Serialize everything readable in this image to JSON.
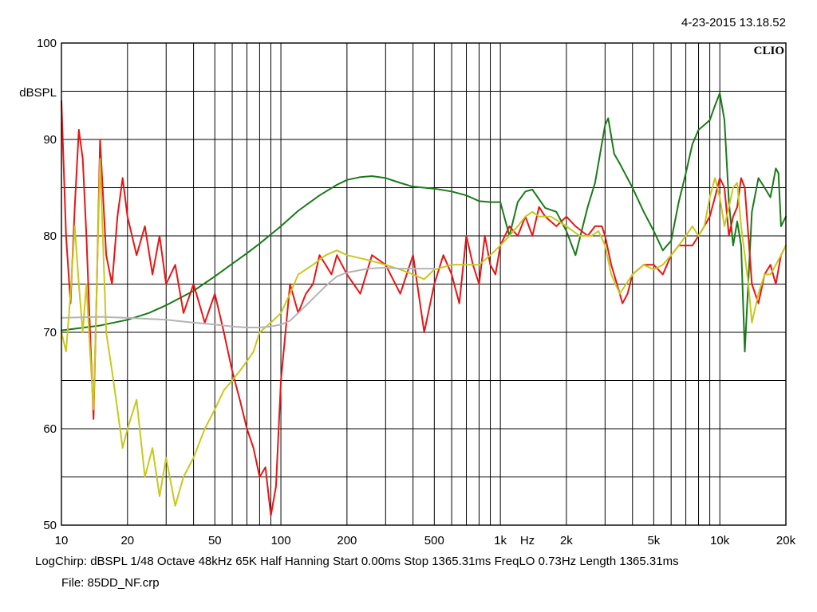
{
  "header": {
    "timestamp": "4-23-2015 13.18.52",
    "brand": "CLIO"
  },
  "footer": {
    "info_line": "LogChirp:  dBSPL   1/48 Octave   48kHz   65K   Half Hanning   Start 0.00ms   Stop 1365.31ms   FreqLO 0.73Hz   Length 1365.31ms",
    "file_line": "File: 85DD_NF.crp"
  },
  "chart_data": {
    "type": "line",
    "title": "",
    "xlabel": "Hz",
    "ylabel": "dBSPL",
    "xscale": "log",
    "xlim": [
      10,
      20000
    ],
    "ylim": [
      50,
      100
    ],
    "grid": true,
    "legend": "none",
    "y_ticks": [
      50,
      60,
      70,
      80,
      90,
      100
    ],
    "x_ticks": [
      {
        "value": 10,
        "label": "10"
      },
      {
        "value": 20,
        "label": "20"
      },
      {
        "value": 50,
        "label": "50"
      },
      {
        "value": 100,
        "label": "100"
      },
      {
        "value": 200,
        "label": "200"
      },
      {
        "value": 500,
        "label": "500"
      },
      {
        "value": 1000,
        "label": "1k"
      },
      {
        "value": 2000,
        "label": "2k"
      },
      {
        "value": 5000,
        "label": "5k"
      },
      {
        "value": 10000,
        "label": "10k"
      },
      {
        "value": 20000,
        "label": "20k"
      }
    ],
    "series": [
      {
        "color": "#1a7a1a",
        "x": [
          10,
          15,
          20,
          25,
          30,
          40,
          50,
          60,
          70,
          80,
          100,
          120,
          150,
          180,
          200,
          230,
          260,
          300,
          350,
          400,
          500,
          600,
          700,
          800,
          900,
          1000,
          1100,
          1200,
          1300,
          1400,
          1500,
          1600,
          1800,
          2000,
          2200,
          2500,
          2700,
          3000,
          3100,
          3300,
          3500,
          4000,
          4500,
          5000,
          5500,
          6000,
          6500,
          7000,
          7500,
          8000,
          8500,
          9000,
          9500,
          10000,
          10500,
          11000,
          11500,
          12000,
          12500,
          13000,
          14000,
          15000,
          16000,
          17000,
          18000,
          18500,
          19000,
          20000
        ],
        "y": [
          70.2,
          70.7,
          71.3,
          72.0,
          72.8,
          74.3,
          75.8,
          77.1,
          78.2,
          79.2,
          81.0,
          82.6,
          84.2,
          85.3,
          85.8,
          86.1,
          86.2,
          86.0,
          85.5,
          85.1,
          84.9,
          84.6,
          84.2,
          83.6,
          83.5,
          83.5,
          80.0,
          83.5,
          84.6,
          84.8,
          83.8,
          82.9,
          82.5,
          80.5,
          78.0,
          83.0,
          85.5,
          91.5,
          92.2,
          88.5,
          87.5,
          85.0,
          82.5,
          80.5,
          78.5,
          79.5,
          83.5,
          86.5,
          89.5,
          91.0,
          91.5,
          92.0,
          93.5,
          94.8,
          92.0,
          83.5,
          79.0,
          81.5,
          79.0,
          68.0,
          82.5,
          86.0,
          85.0,
          84.0,
          87.0,
          86.5,
          81.0,
          82.0
        ]
      },
      {
        "color": "#e81515",
        "x": [
          10,
          10.5,
          11,
          11.5,
          12,
          12.5,
          13,
          13.5,
          14,
          14.5,
          15,
          16,
          17,
          18,
          19,
          20,
          22,
          24,
          26,
          28,
          30,
          33,
          36,
          40,
          45,
          50,
          55,
          60,
          65,
          70,
          75,
          80,
          85,
          90,
          95,
          100,
          110,
          120,
          130,
          140,
          150,
          160,
          170,
          180,
          200,
          230,
          260,
          300,
          350,
          400,
          450,
          500,
          550,
          600,
          650,
          700,
          750,
          800,
          850,
          900,
          950,
          1000,
          1100,
          1200,
          1300,
          1400,
          1500,
          1600,
          1800,
          2000,
          2200,
          2500,
          2700,
          2900,
          3000,
          3200,
          3400,
          3600,
          3800,
          4000,
          4500,
          5000,
          5500,
          6000,
          6500,
          7000,
          7500,
          8000,
          8500,
          9000,
          9500,
          10000,
          10500,
          11000,
          11500,
          12000,
          12500,
          13000,
          13500,
          14000,
          15000,
          16000,
          17000,
          18000,
          19000,
          20000
        ],
        "y": [
          94,
          80,
          73,
          83,
          91,
          88,
          80,
          70,
          61,
          75,
          90,
          78,
          75,
          82,
          86,
          82,
          78,
          81,
          76,
          80,
          75,
          77,
          72,
          75,
          71,
          74,
          70,
          66,
          63,
          60,
          58,
          55,
          56,
          51,
          54,
          65,
          75,
          72,
          74,
          75,
          78,
          77,
          76,
          78,
          76,
          74,
          78,
          77,
          74,
          78,
          70,
          75,
          78,
          76,
          73,
          80,
          77,
          75,
          80,
          77,
          76,
          79,
          81,
          80,
          82,
          80,
          83,
          82,
          81,
          82,
          81,
          80,
          81,
          81,
          80,
          77,
          75,
          73,
          74,
          76,
          77,
          77,
          76,
          78,
          79,
          79,
          79,
          80,
          81,
          82,
          84,
          86,
          85,
          80,
          82,
          83,
          86,
          85,
          80,
          75,
          73,
          76,
          77,
          75,
          78,
          79
        ]
      },
      {
        "color": "#c8c81e",
        "x": [
          10,
          10.5,
          11,
          11.5,
          12,
          12.5,
          13,
          13.5,
          14,
          14.5,
          15,
          16,
          17,
          18,
          19,
          20,
          22,
          24,
          26,
          28,
          30,
          33,
          36,
          40,
          45,
          50,
          55,
          60,
          65,
          70,
          75,
          80,
          90,
          100,
          110,
          120,
          140,
          160,
          180,
          200,
          250,
          300,
          350,
          400,
          450,
          500,
          600,
          700,
          800,
          900,
          1000,
          1100,
          1200,
          1300,
          1400,
          1500,
          1700,
          2000,
          2300,
          2600,
          2800,
          3000,
          3200,
          3500,
          4000,
          4500,
          5000,
          5500,
          6000,
          6500,
          7000,
          7500,
          8000,
          8500,
          9000,
          9500,
          10000,
          10500,
          11000,
          11500,
          12000,
          12500,
          13000,
          13500,
          14000,
          15000,
          16000,
          17000,
          18000,
          19000,
          20000
        ],
        "y": [
          70,
          68,
          74,
          81,
          75,
          70,
          75,
          68,
          62,
          75,
          88,
          70,
          66,
          62,
          58,
          60,
          63,
          55,
          58,
          53,
          57,
          52,
          55,
          57,
          60,
          62,
          64,
          65,
          66,
          67,
          68,
          70,
          71,
          72,
          74,
          76,
          77,
          78,
          78.5,
          78,
          77.5,
          77,
          76.5,
          76,
          75.5,
          76.5,
          77,
          77,
          77,
          78,
          79,
          80,
          81,
          82,
          82.5,
          82,
          82,
          81,
          80,
          80,
          80.5,
          79,
          76,
          74,
          76,
          77,
          76.5,
          77,
          78,
          79,
          80,
          81,
          80,
          81,
          84,
          86,
          84,
          81,
          83,
          85,
          85.5,
          81,
          78,
          75,
          71,
          74,
          76,
          76,
          77,
          78,
          79
        ]
      },
      {
        "color": "#b4b4b4",
        "x": [
          10,
          15,
          20,
          30,
          40,
          50,
          60,
          70,
          80,
          90,
          100,
          110,
          120,
          140,
          160,
          180,
          200,
          250,
          300,
          350,
          400,
          450,
          500
        ],
        "y": [
          71.5,
          71.6,
          71.5,
          71.3,
          71.0,
          70.8,
          70.6,
          70.5,
          70.5,
          70.6,
          70.8,
          71.2,
          72.0,
          73.5,
          74.8,
          75.8,
          76.2,
          76.6,
          76.7,
          76.6,
          76.6,
          76.6,
          76.6
        ]
      }
    ]
  }
}
